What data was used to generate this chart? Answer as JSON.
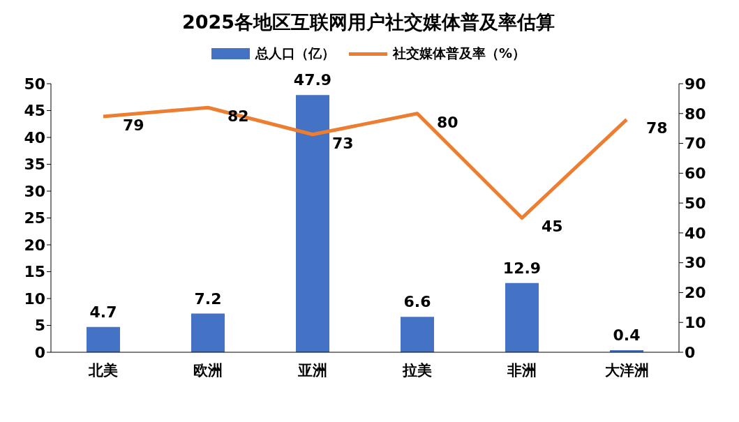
{
  "chart_data": {
    "type": "bar",
    "title": "2025各地区互联网用户社交媒体普及率估算",
    "categories": [
      "北美",
      "欧洲",
      "亚洲",
      "拉美",
      "非洲",
      "大洋洲"
    ],
    "series": [
      {
        "name": "总人口（亿）",
        "color": "#4472c4",
        "values": [
          4.7,
          7.2,
          47.9,
          6.6,
          12.9,
          0.4
        ]
      },
      {
        "name": "社交媒体普及率（%）",
        "type": "line",
        "axis": "y2",
        "color": "#ed7d31",
        "values": [
          79,
          82,
          73,
          80,
          45,
          78
        ]
      }
    ],
    "ylim": [
      0,
      50
    ],
    "yticks": [
      0,
      5,
      10,
      15,
      20,
      25,
      30,
      35,
      40,
      45,
      50
    ],
    "y2lim": [
      0,
      90
    ],
    "y2ticks": [
      0,
      10,
      20,
      30,
      40,
      50,
      60,
      70,
      80,
      90
    ],
    "data_labels": true,
    "legend": "top",
    "grid": false,
    "marker": "none",
    "line_style": "solid"
  }
}
